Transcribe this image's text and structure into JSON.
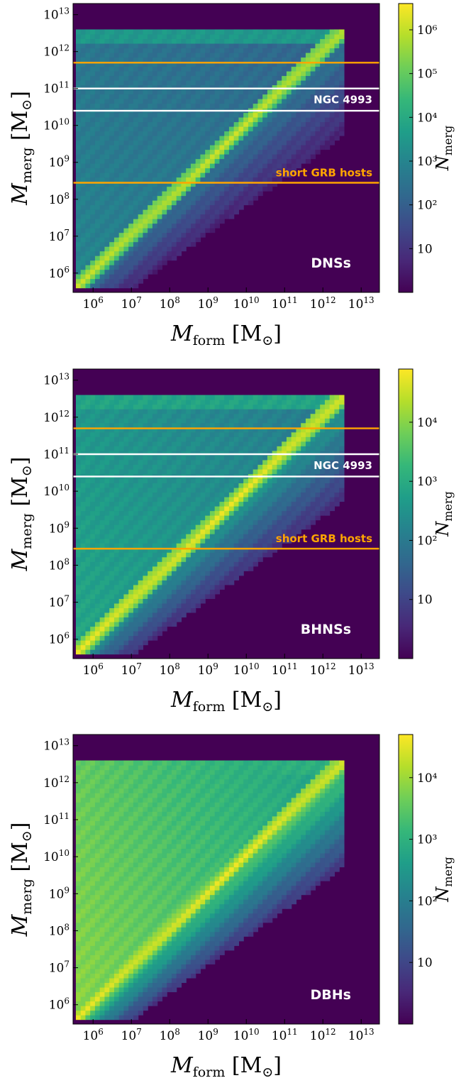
{
  "colors": {
    "cmap": [
      "#440154",
      "#482878",
      "#3e4989",
      "#31688e",
      "#26828e",
      "#1f9e89",
      "#35b779",
      "#6ece58",
      "#b5de2b",
      "#fde725"
    ],
    "orange": "#ffa500",
    "white": "#ffffff"
  },
  "chart_data": [
    {
      "type": "heatmap",
      "panel_label": "DNSs",
      "xlabel": "M_form [M_⊙]",
      "ylabel": "M_merg [M_⊙]",
      "colorbar_label": "N_merg",
      "x_scale": "log",
      "y_scale": "log",
      "xlim": [
        300000.0,
        30000000000000.0
      ],
      "ylim": [
        300000.0,
        20000000000000.0
      ],
      "x_ticks": [
        6,
        7,
        8,
        9,
        10,
        11,
        12,
        13
      ],
      "y_ticks": [
        6,
        7,
        8,
        9,
        10,
        11,
        12,
        13
      ],
      "colorbar": {
        "range_log": [
          0,
          6.6
        ],
        "ticks": [
          {
            "v": 1,
            "t": "10"
          },
          {
            "v": 2,
            "t": "10²"
          },
          {
            "v": 3,
            "t": "10³"
          },
          {
            "v": 4,
            "t": "10⁴"
          },
          {
            "v": 5,
            "t": "10⁵"
          },
          {
            "v": 6,
            "t": "10⁶"
          }
        ]
      },
      "hlines": [
        {
          "y": 500000000000.0,
          "color": "orange"
        },
        {
          "y": 100000000000.0,
          "color": "white"
        },
        {
          "y": 25000000000.0,
          "color": "white"
        },
        {
          "y": 280000000.0,
          "color": "orange"
        }
      ],
      "annotations": [
        {
          "text": "NGC 4993",
          "y_log": 10.6,
          "color": "white"
        },
        {
          "text": "short GRB hosts",
          "y_log": 8.62,
          "color": "orange"
        }
      ],
      "density_shape": {
        "diag_level": 0.9,
        "upper_level": 0.42,
        "lower_level": 0.06,
        "top_band": 0.5
      }
    },
    {
      "type": "heatmap",
      "panel_label": "BHNSs",
      "xlabel": "M_form [M_⊙]",
      "ylabel": "M_merg [M_⊙]",
      "colorbar_label": "N_merg",
      "x_scale": "log",
      "y_scale": "log",
      "xlim": [
        300000.0,
        30000000000000.0
      ],
      "ylim": [
        300000.0,
        20000000000000.0
      ],
      "x_ticks": [
        6,
        7,
        8,
        9,
        10,
        11,
        12,
        13
      ],
      "y_ticks": [
        6,
        7,
        8,
        9,
        10,
        11,
        12,
        13
      ],
      "colorbar": {
        "range_log": [
          0,
          4.9
        ],
        "ticks": [
          {
            "v": 1,
            "t": "10"
          },
          {
            "v": 2,
            "t": "10²"
          },
          {
            "v": 3,
            "t": "10³"
          },
          {
            "v": 4,
            "t": "10⁴"
          }
        ]
      },
      "hlines": [
        {
          "y": 500000000000.0,
          "color": "orange"
        },
        {
          "y": 100000000000.0,
          "color": "white"
        },
        {
          "y": 25000000000.0,
          "color": "white"
        },
        {
          "y": 280000000.0,
          "color": "orange"
        }
      ],
      "annotations": [
        {
          "text": "NGC 4993",
          "y_log": 10.6,
          "color": "white"
        },
        {
          "text": "short GRB hosts",
          "y_log": 8.62,
          "color": "orange"
        }
      ],
      "density_shape": {
        "diag_level": 0.95,
        "upper_level": 0.55,
        "lower_level": 0.1,
        "top_band": 0.55
      }
    },
    {
      "type": "heatmap",
      "panel_label": "DBHs",
      "xlabel": "M_form [M_⊙]",
      "ylabel": "M_merg [M_⊙]",
      "colorbar_label": "N_merg",
      "x_scale": "log",
      "y_scale": "log",
      "xlim": [
        300000.0,
        30000000000000.0
      ],
      "ylim": [
        300000.0,
        20000000000000.0
      ],
      "x_ticks": [
        6,
        7,
        8,
        9,
        10,
        11,
        12,
        13
      ],
      "y_ticks": [
        6,
        7,
        8,
        9,
        10,
        11,
        12,
        13
      ],
      "colorbar": {
        "range_log": [
          0,
          4.7
        ],
        "ticks": [
          {
            "v": 1,
            "t": "10"
          },
          {
            "v": 2,
            "t": "10²"
          },
          {
            "v": 3,
            "t": "10³"
          },
          {
            "v": 4,
            "t": "10⁴"
          }
        ]
      },
      "hlines": [],
      "annotations": [],
      "density_shape": {
        "diag_level": 0.95,
        "upper_level": 0.78,
        "lower_level": 0.12,
        "top_band": 0.6
      }
    }
  ]
}
